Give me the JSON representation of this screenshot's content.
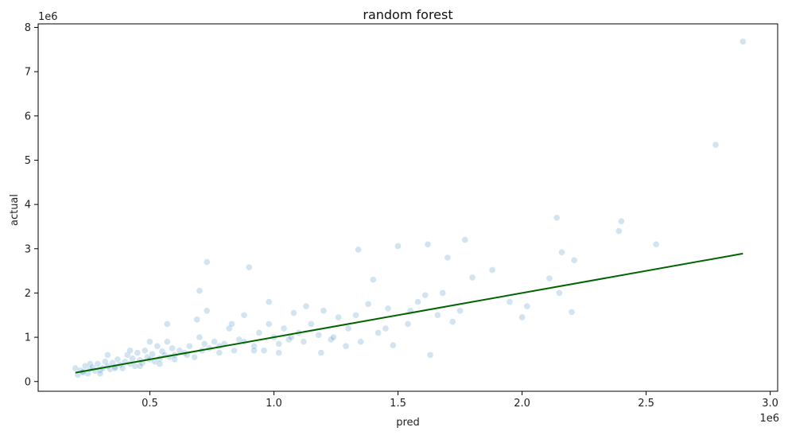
{
  "chart_data": {
    "type": "scatter",
    "title": "random forest",
    "xlabel": "pred",
    "ylabel": "actual",
    "x_offset_text": "1e6",
    "y_offset_text": "1e6",
    "xlim": [
      50000,
      3030000
    ],
    "ylim": [
      -220000,
      8080000
    ],
    "x_ticks": [
      500000,
      1000000,
      1500000,
      2000000,
      2500000,
      3000000
    ],
    "x_tick_labels": [
      "0.5",
      "1.0",
      "1.5",
      "2.0",
      "2.5",
      "3.0"
    ],
    "y_ticks": [
      0,
      1000000,
      2000000,
      3000000,
      4000000,
      5000000,
      6000000,
      7000000,
      8000000
    ],
    "y_tick_labels": [
      "0",
      "1",
      "2",
      "3",
      "4",
      "5",
      "6",
      "7",
      "8"
    ],
    "grid": false,
    "point_color": "#1f77b4",
    "point_alpha": 0.2,
    "line_color": "#006400",
    "reference_line": {
      "x": [
        200000,
        2890000
      ],
      "y": [
        200000,
        2890000
      ]
    },
    "series": [
      {
        "x": [
          200000,
          210000,
          220000,
          230000,
          240000,
          250000,
          260000,
          270000,
          280000,
          290000,
          300000,
          310000,
          320000,
          330000,
          340000,
          350000,
          360000,
          370000,
          380000,
          390000,
          400000,
          410000,
          420000,
          430000,
          440000,
          450000,
          460000,
          470000,
          480000,
          490000,
          500000,
          510000,
          520000,
          530000,
          540000,
          550000,
          560000,
          570000,
          580000,
          590000,
          600000,
          620000,
          640000,
          660000,
          680000,
          700000,
          700000,
          710000,
          720000,
          730000,
          740000,
          760000,
          780000,
          800000,
          820000,
          840000,
          860000,
          880000,
          900000,
          920000,
          940000,
          960000,
          980000,
          1000000,
          1020000,
          1040000,
          1060000,
          1080000,
          1100000,
          1120000,
          1150000,
          1180000,
          1200000,
          1230000,
          1260000,
          1300000,
          1340000,
          1380000,
          1420000,
          1460000,
          1500000,
          1540000,
          1580000,
          1620000,
          1660000,
          1700000,
          1750000,
          1800000,
          1880000,
          1950000,
          2000000,
          2020000,
          2110000,
          2140000,
          2150000,
          2160000,
          2200000,
          2210000,
          2390000,
          2400000,
          2540000,
          2780000,
          2890000,
          230000,
          260000,
          300000,
          330000,
          360000,
          420000,
          460000,
          500000,
          540000,
          570000,
          600000,
          650000,
          690000,
          730000,
          780000,
          830000,
          880000,
          920000,
          980000,
          1020000,
          1070000,
          1130000,
          1190000,
          1240000,
          1290000,
          1330000,
          1350000,
          1400000,
          1450000,
          1480000,
          1550000,
          1610000,
          1630000,
          1680000,
          1720000,
          1770000
        ],
        "y": [
          300000,
          150000,
          250000,
          200000,
          350000,
          180000,
          280000,
          320000,
          240000,
          400000,
          260000,
          300000,
          450000,
          350000,
          280000,
          420000,
          330000,
          500000,
          380000,
          300000,
          450000,
          600000,
          400000,
          520000,
          350000,
          650000,
          480000,
          420000,
          700000,
          550000,
          500000,
          620000,
          450000,
          800000,
          520000,
          680000,
          600000,
          900000,
          550000,
          750000,
          600000,
          700000,
          650000,
          800000,
          550000,
          2050000,
          1000000,
          700000,
          850000,
          2700000,
          750000,
          900000,
          650000,
          850000,
          1200000,
          700000,
          950000,
          1500000,
          2580000,
          800000,
          1100000,
          700000,
          1300000,
          1000000,
          850000,
          1200000,
          950000,
          1550000,
          1100000,
          900000,
          1300000,
          1050000,
          1600000,
          950000,
          1450000,
          1200000,
          2980000,
          1750000,
          1100000,
          1650000,
          3060000,
          1300000,
          1800000,
          3100000,
          1500000,
          2800000,
          1600000,
          2350000,
          2520000,
          1800000,
          1450000,
          1700000,
          2330000,
          3700000,
          2000000,
          2920000,
          1570000,
          2740000,
          3400000,
          3620000,
          3100000,
          5350000,
          7680000,
          220000,
          400000,
          180000,
          600000,
          300000,
          700000,
          350000,
          900000,
          400000,
          1300000,
          500000,
          600000,
          1400000,
          1600000,
          800000,
          1300000,
          900000,
          700000,
          1800000,
          650000,
          1000000,
          1700000,
          650000,
          1000000,
          800000,
          1500000,
          900000,
          2300000,
          1200000,
          820000,
          1600000,
          1950000,
          600000,
          2000000,
          1350000,
          3200000
        ]
      }
    ]
  }
}
